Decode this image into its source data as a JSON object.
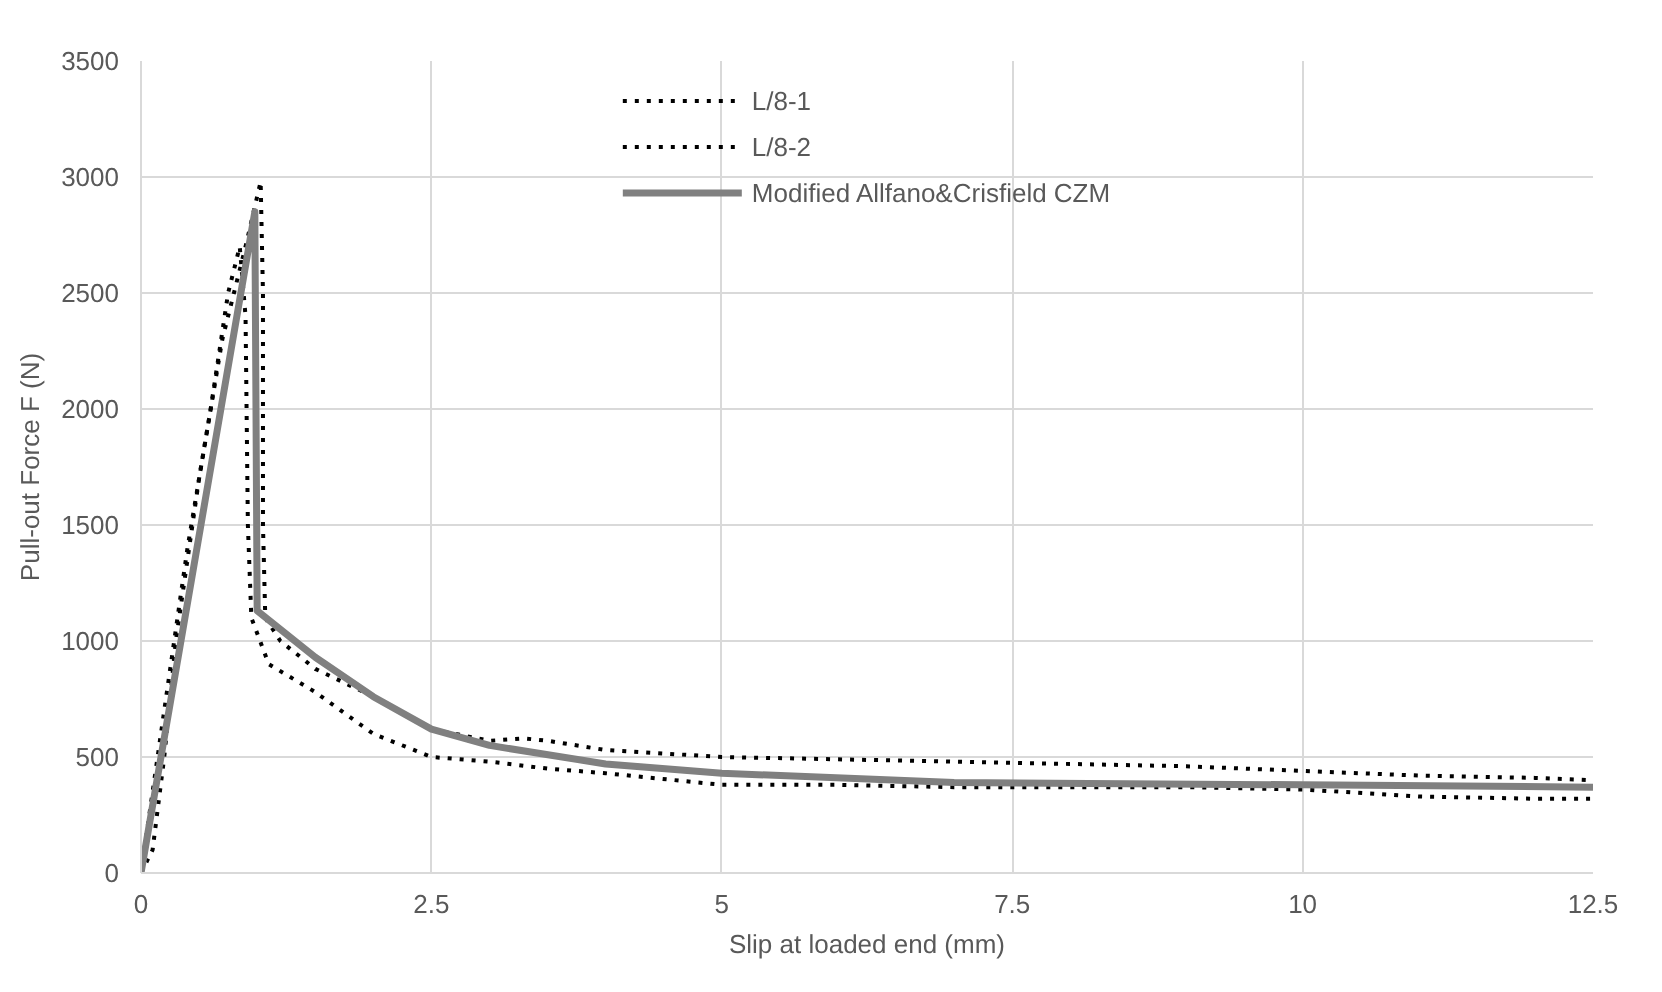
{
  "chart_data": {
    "type": "line",
    "xlabel": "Slip at loaded end (mm)",
    "ylabel": "Pull-out Force F (N)",
    "xlim": [
      0,
      12.5
    ],
    "xticks": [
      0,
      2.5,
      5,
      7.5,
      10,
      12.5
    ],
    "ylim": [
      0,
      3500
    ],
    "yticks": [
      0,
      500,
      1000,
      1500,
      2000,
      2500,
      3000,
      3500
    ],
    "grid": true,
    "legend": "top",
    "series": [
      {
        "name": "L/8-1",
        "color": "#000000",
        "line_style": "dotted",
        "x": [
          0,
          0.1,
          0.2,
          0.3,
          0.5,
          0.7,
          0.9,
          1.03,
          1.05,
          1.05,
          1.07,
          1.2,
          1.5,
          2,
          2.5,
          3,
          3.3,
          3.5,
          4,
          5,
          6,
          7,
          8,
          9,
          10,
          11,
          12,
          12.5
        ],
        "values": [
          0,
          100,
          500,
          1000,
          1700,
          2300,
          2700,
          2980,
          2500,
          1500,
          1100,
          1000,
          880,
          760,
          620,
          570,
          580,
          570,
          530,
          500,
          490,
          480,
          470,
          460,
          440,
          420,
          410,
          400
        ]
      },
      {
        "name": "L/8-2",
        "color": "#000000",
        "line_style": "dotted",
        "x": [
          0,
          0.2,
          0.4,
          0.6,
          0.75,
          0.85,
          0.9,
          0.92,
          0.95,
          1.1,
          1.5,
          2,
          2.5,
          3,
          3.5,
          4,
          5,
          6,
          7,
          8,
          9,
          10,
          11,
          12,
          12.5
        ],
        "values": [
          0,
          700,
          1400,
          2000,
          2500,
          2700,
          2400,
          1500,
          1100,
          900,
          780,
          600,
          500,
          480,
          450,
          430,
          380,
          380,
          370,
          370,
          370,
          360,
          330,
          320,
          320
        ]
      },
      {
        "name": "Modified Allfano&Crisfield CZM",
        "color": "#808080",
        "line_style": "solid",
        "x": [
          0,
          0.98,
          1.0,
          1.5,
          2,
          2.5,
          3,
          4,
          5,
          7,
          10,
          12.5
        ],
        "values": [
          0,
          2850,
          1130,
          930,
          760,
          620,
          550,
          470,
          430,
          390,
          380,
          370
        ]
      }
    ]
  }
}
